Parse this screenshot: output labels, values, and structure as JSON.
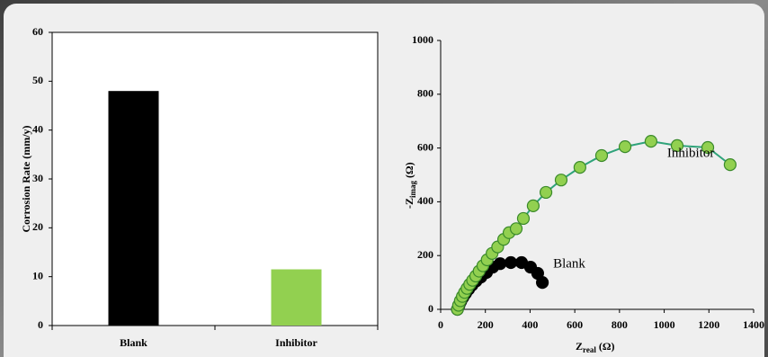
{
  "chart_data": [
    {
      "type": "bar",
      "ylabel": "Corrosion Rate (mm/y)",
      "categories": [
        "Blank",
        "Inhibitor"
      ],
      "values": [
        48,
        11.5
      ],
      "colors": [
        "#000000",
        "#92d050"
      ],
      "ylim": [
        0,
        60
      ],
      "yticks": [
        0,
        10,
        20,
        30,
        40,
        50,
        60
      ],
      "grid": false
    },
    {
      "type": "line",
      "xlabel": {
        "text": "Z",
        "sub": "real",
        "unit": "(Ω)"
      },
      "ylabel": {
        "text": "-Z",
        "sub": "imag",
        "unit": "(Ω)"
      },
      "xlim": [
        0,
        1400
      ],
      "xticks": [
        0,
        200,
        400,
        600,
        800,
        1000,
        1200,
        1400
      ],
      "ylim": [
        0,
        1000
      ],
      "yticks": [
        0,
        200,
        400,
        600,
        800,
        1000
      ],
      "grid": false,
      "series": [
        {
          "name": "Blank",
          "color": "#000000",
          "marker_fill": "#000000",
          "line_color": "#000000",
          "x": [
            75,
            82,
            90,
            100,
            112,
            125,
            140,
            158,
            180,
            205,
            233,
            266,
            314,
            362,
            402,
            434,
            455
          ],
          "values": [
            0,
            15,
            30,
            45,
            60,
            75,
            90,
            105,
            120,
            137,
            157,
            170,
            174,
            174,
            157,
            134,
            100
          ]
        },
        {
          "name": "Inhibitor",
          "color": "#3a8a2a",
          "marker_fill": "#92d050",
          "line_color": "#2fa37a",
          "x": [
            75,
            80,
            88,
            97,
            107,
            118,
            130,
            143,
            157,
            172,
            189,
            208,
            230,
            255,
            282,
            306,
            338,
            370,
            414,
            471,
            539,
            623,
            720,
            825,
            941,
            1058,
            1195,
            1295
          ],
          "values": [
            0,
            15,
            32,
            48,
            63,
            78,
            93,
            108,
            124,
            142,
            162,
            184,
            208,
            232,
            260,
            285,
            300,
            338,
            385,
            435,
            481,
            528,
            572,
            605,
            625,
            609,
            602,
            538
          ]
        }
      ]
    }
  ]
}
